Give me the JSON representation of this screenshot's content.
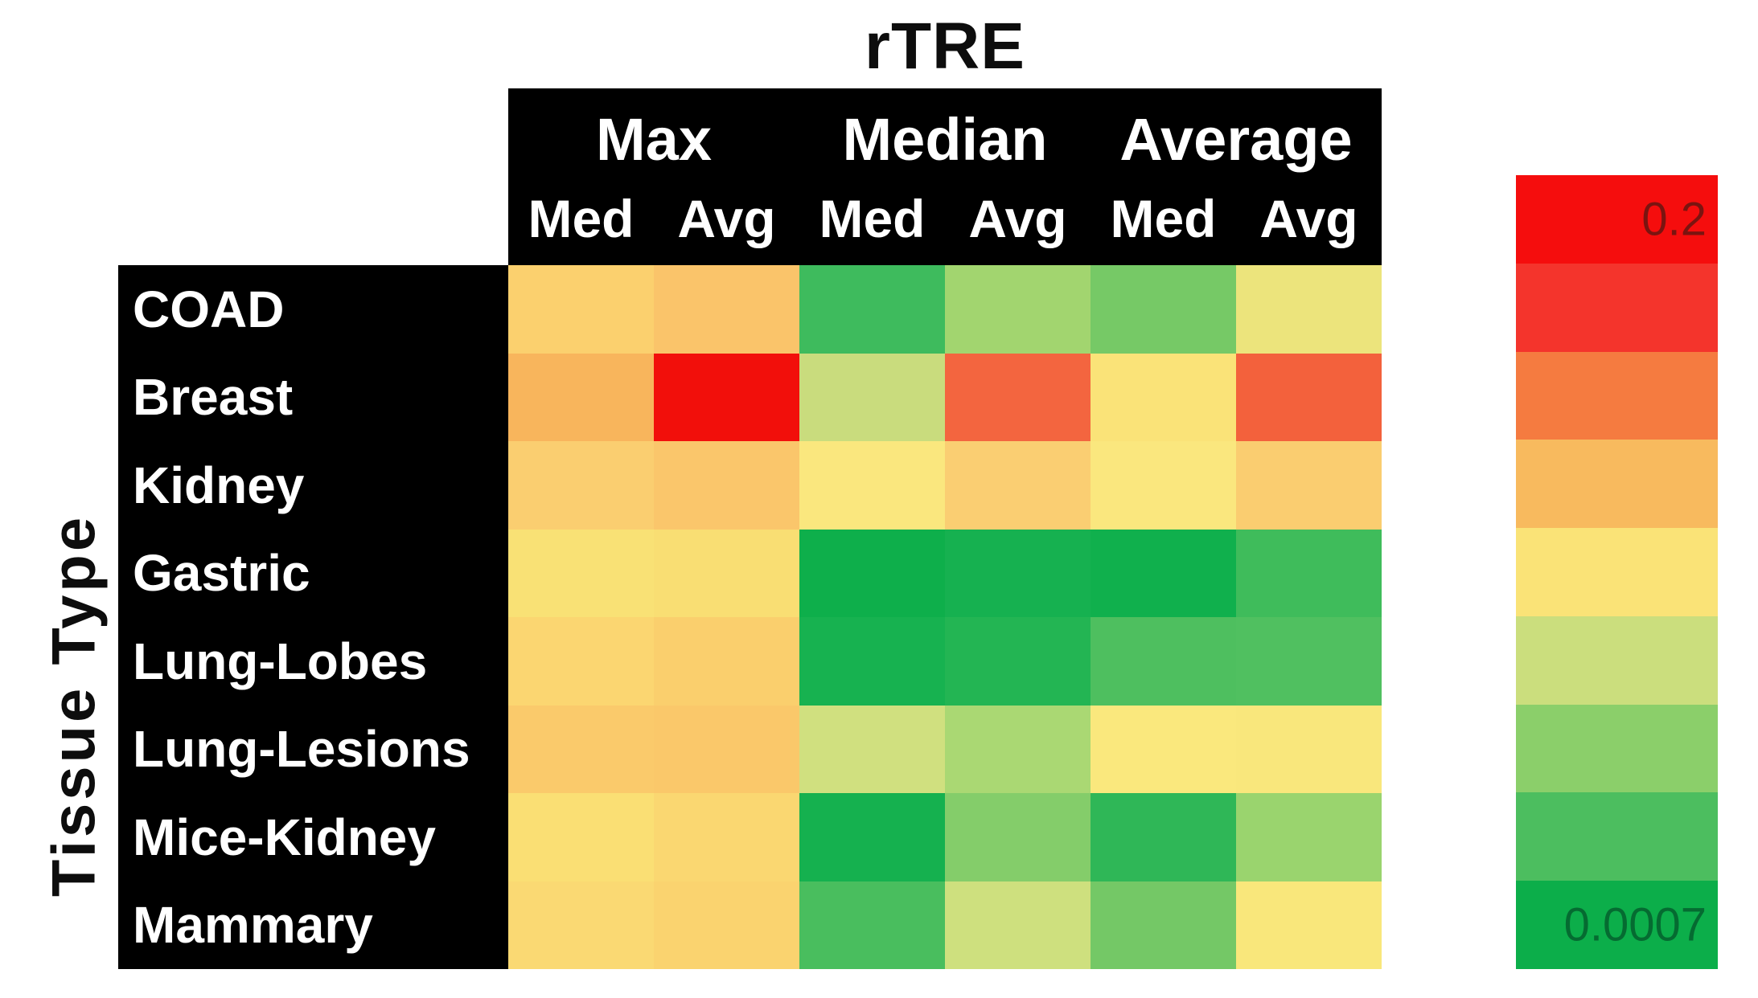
{
  "title": "rTRE",
  "y_axis_label": "Tissue Type",
  "header": {
    "groups": [
      {
        "label": "Max",
        "span": 2
      },
      {
        "label": "Median",
        "span": 2
      },
      {
        "label": "Average",
        "span": 2
      }
    ],
    "sub_columns": [
      "Med",
      "Avg",
      "Med",
      "Avg",
      "Med",
      "Avg"
    ]
  },
  "legend": {
    "max_label": "0.2",
    "min_label": "0.0007",
    "max_label_color": "#7a1410",
    "min_label_color": "#056b31",
    "band_colors": [
      "#f50d0d",
      "#f4342c",
      "#f57b40",
      "#f8ba5e",
      "#fae377",
      "#cbde7d",
      "#8bcf6a",
      "#4cbe5f",
      "#0cae4a"
    ]
  },
  "chart_data": {
    "type": "heatmap",
    "title": "rTRE",
    "ylabel": "Tissue Type",
    "column_groups": [
      "Max",
      "Max",
      "Median",
      "Median",
      "Average",
      "Average"
    ],
    "columns": [
      "Max-Med",
      "Max-Avg",
      "Median-Med",
      "Median-Avg",
      "Average-Med",
      "Average-Avg"
    ],
    "rows": [
      "COAD",
      "Breast",
      "Kidney",
      "Gastric",
      "Lung-Lobes",
      "Lung-Lesions",
      "Mice-Kidney",
      "Mammary"
    ],
    "value_scale": {
      "high": 0.2,
      "low": 0.0007,
      "note": "color encodes rTRE magnitude: red = high error (0.2), green = low error (0.0007); no per-cell numeric labels are shown"
    },
    "cell_colors": [
      [
        "#fbd06e",
        "#fac46a",
        "#3ebb5d",
        "#a2d56f",
        "#76c966",
        "#ece47c"
      ],
      [
        "#f8b55c",
        "#f20f0b",
        "#c9dc7d",
        "#f3653f",
        "#fae378",
        "#f3613c"
      ],
      [
        "#face70",
        "#fac66b",
        "#fae77e",
        "#face72",
        "#fae77e",
        "#facd70"
      ],
      [
        "#f9e175",
        "#f9de73",
        "#0eaf4b",
        "#16b150",
        "#10b04d",
        "#3fbc5b"
      ],
      [
        "#fbd671",
        "#facf6d",
        "#17b250",
        "#23b553",
        "#4ebf5f",
        "#50c060"
      ],
      [
        "#faca6b",
        "#fac86a",
        "#d0e07f",
        "#aad873",
        "#fae87d",
        "#f9e77c"
      ],
      [
        "#fadf74",
        "#fad771",
        "#15b14f",
        "#84cd6a",
        "#2fb757",
        "#9ad46e"
      ],
      [
        "#fad973",
        "#fad36f",
        "#49be5e",
        "#cee07e",
        "#74c866",
        "#f9e77b"
      ]
    ]
  }
}
